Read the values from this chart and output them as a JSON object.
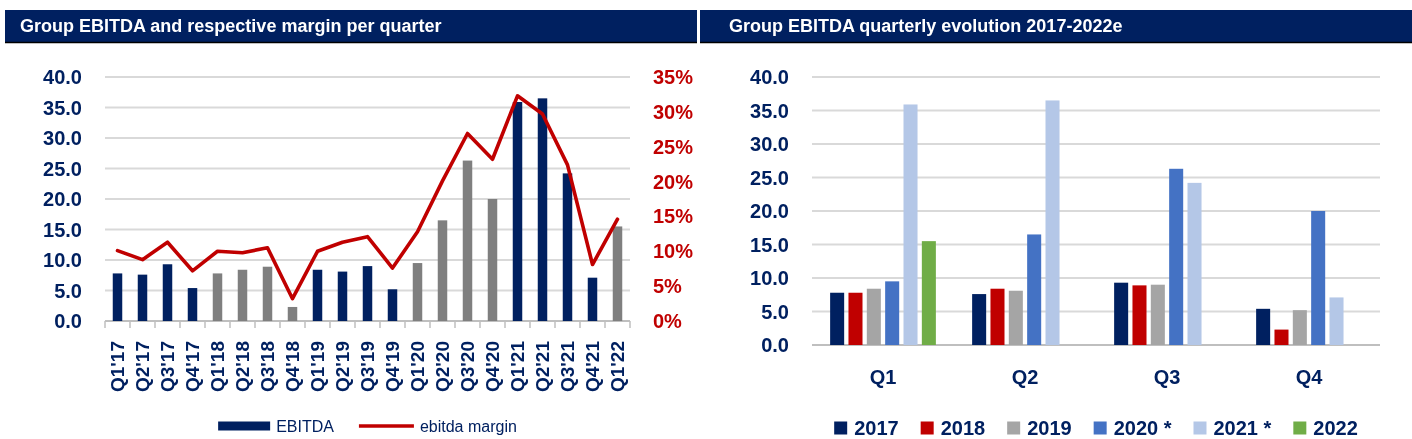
{
  "chart_data": [
    {
      "type": "bar",
      "title": "Group EBITDA and respective margin per quarter",
      "categories": [
        "Q1'17",
        "Q2'17",
        "Q3'17",
        "Q4'17",
        "Q1'18",
        "Q2'18",
        "Q3'18",
        "Q4'18",
        "Q1'19",
        "Q2'19",
        "Q3'19",
        "Q4'19",
        "Q1'20",
        "Q2'20",
        "Q3'20",
        "Q4'20",
        "Q1'21",
        "Q2'21",
        "Q3'21",
        "Q4'21",
        "Q1'22"
      ],
      "series": [
        {
          "name": "EBITDA",
          "color": "#002060",
          "colors": [
            "#002060",
            "#002060",
            "#002060",
            "#002060",
            "#7f7f7f",
            "#7f7f7f",
            "#7f7f7f",
            "#7f7f7f",
            "#002060",
            "#002060",
            "#002060",
            "#002060",
            "#7f7f7f",
            "#7f7f7f",
            "#7f7f7f",
            "#7f7f7f",
            "#002060",
            "#002060",
            "#002060",
            "#002060",
            "#7f7f7f"
          ],
          "values": [
            7.8,
            7.6,
            9.3,
            5.4,
            7.8,
            8.4,
            8.9,
            2.3,
            8.4,
            8.1,
            9.0,
            5.2,
            9.5,
            16.5,
            26.3,
            20.0,
            35.9,
            36.5,
            24.2,
            7.1,
            15.5
          ]
        },
        {
          "name": "ebitda margin",
          "type": "line",
          "axis": "y2",
          "color": "#c00000",
          "values": [
            10.1,
            8.8,
            11.3,
            7.2,
            10.0,
            9.8,
            10.5,
            3.2,
            10.0,
            11.3,
            12.1,
            7.6,
            12.8,
            20.1,
            26.9,
            23.2,
            32.3,
            29.7,
            22.4,
            8.1,
            14.6
          ]
        }
      ],
      "ylim": [
        0,
        40
      ],
      "yticks": [
        {
          "value": 0,
          "label": "0.0"
        },
        {
          "value": 5,
          "label": "5.0"
        },
        {
          "value": 10,
          "label": "10.0"
        },
        {
          "value": 15,
          "label": "15.0"
        },
        {
          "value": 20,
          "label": "20.0"
        },
        {
          "value": 25,
          "label": "25.0"
        },
        {
          "value": 30,
          "label": "30.0"
        },
        {
          "value": 35,
          "label": "35.0"
        },
        {
          "value": 40,
          "label": "40.0"
        }
      ],
      "y2lim": [
        0,
        35
      ],
      "y2ticks": [
        {
          "value": 0,
          "label": "0%"
        },
        {
          "value": 5,
          "label": "5%"
        },
        {
          "value": 10,
          "label": "10%"
        },
        {
          "value": 15,
          "label": "15%"
        },
        {
          "value": 20,
          "label": "20%"
        },
        {
          "value": 25,
          "label": "25%"
        },
        {
          "value": 30,
          "label": "30%"
        },
        {
          "value": 35,
          "label": "35%"
        }
      ],
      "grid": "y",
      "legend": "bottom",
      "line_style": "solid"
    },
    {
      "type": "bar",
      "title": "Group EBITDA quarterly evolution 2017-2022e",
      "categories": [
        "Q1",
        "Q2",
        "Q3",
        "Q4"
      ],
      "series": [
        {
          "name": "2017",
          "color": "#002060",
          "values": [
            7.8,
            7.6,
            9.3,
            5.4
          ]
        },
        {
          "name": "2018",
          "color": "#c00000",
          "values": [
            7.8,
            8.4,
            8.9,
            2.3
          ]
        },
        {
          "name": "2019",
          "color": "#a5a5a5",
          "values": [
            8.4,
            8.1,
            9.0,
            5.2
          ]
        },
        {
          "name": "2020 *",
          "color": "#4472c4",
          "values": [
            9.5,
            16.5,
            26.3,
            20.0
          ]
        },
        {
          "name": "2021 *",
          "color": "#b4c7e7",
          "values": [
            35.9,
            36.5,
            24.2,
            7.1
          ]
        },
        {
          "name": "2022",
          "color": "#70ad47",
          "values": [
            15.5,
            null,
            null,
            null
          ]
        }
      ],
      "ylim": [
        0,
        40
      ],
      "yticks": [
        {
          "value": 0,
          "label": "0.0"
        },
        {
          "value": 5,
          "label": "5.0"
        },
        {
          "value": 10,
          "label": "10.0"
        },
        {
          "value": 15,
          "label": "15.0"
        },
        {
          "value": 20,
          "label": "20.0"
        },
        {
          "value": 25,
          "label": "25.0"
        },
        {
          "value": 30,
          "label": "30.0"
        },
        {
          "value": 35,
          "label": "35.0"
        },
        {
          "value": 40,
          "label": "40.0"
        }
      ],
      "grid": "y",
      "legend": "bottom"
    }
  ]
}
